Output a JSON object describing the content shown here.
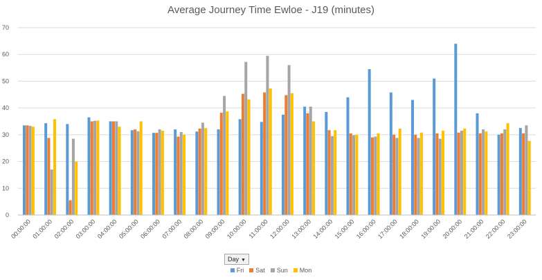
{
  "chart_data": {
    "type": "bar",
    "title": "Average Journey Time Ewloe - J19 (minutes)",
    "xlabel": "",
    "ylabel": "",
    "ylim": [
      0,
      70
    ],
    "yticks": [
      0,
      10,
      20,
      30,
      40,
      50,
      60,
      70
    ],
    "grid": true,
    "legend_position": "bottom",
    "categories": [
      "00:00:00",
      "01:00:00",
      "02:00:00",
      "03:00:00",
      "04:00:00",
      "05:00:00",
      "06:00:00",
      "07:00:00",
      "08:00:00",
      "09:00:00",
      "10:00:00",
      "11:00:00",
      "12:00:00",
      "13:00:00",
      "14:00:00",
      "15:00:00",
      "16:00:00",
      "17:00:00",
      "18:00:00",
      "19:00:00",
      "20:00:00",
      "21:00:00",
      "22:00:00",
      "23:00:00"
    ],
    "series": [
      {
        "name": "Fri",
        "color": "#5b9bd5",
        "values": [
          33.5,
          34.3,
          34.0,
          36.5,
          35.0,
          31.7,
          30.7,
          32.0,
          31.2,
          32.0,
          35.8,
          34.8,
          37.5,
          40.5,
          38.5,
          44.0,
          54.5,
          45.8,
          43.0,
          51.0,
          64.0,
          38.0,
          30.0,
          32.5
        ]
      },
      {
        "name": "Sat",
        "color": "#ed7d31",
        "values": [
          33.5,
          28.8,
          5.5,
          35.0,
          35.0,
          32.0,
          30.7,
          29.3,
          32.3,
          38.2,
          45.3,
          45.8,
          44.8,
          38.0,
          31.7,
          30.5,
          29.0,
          30.0,
          30.0,
          30.5,
          30.8,
          30.5,
          30.5,
          30.5
        ]
      },
      {
        "name": "Sun",
        "color": "#a5a5a5",
        "values": [
          33.3,
          17.0,
          28.5,
          35.2,
          35.0,
          31.3,
          32.0,
          31.0,
          34.5,
          44.5,
          57.2,
          59.5,
          56.0,
          40.5,
          29.5,
          29.8,
          29.3,
          28.8,
          28.8,
          28.5,
          31.5,
          32.0,
          32.0,
          33.5
        ]
      },
      {
        "name": "Mon",
        "color": "#ffc000",
        "values": [
          33.0,
          35.8,
          20.0,
          35.3,
          33.0,
          35.0,
          31.5,
          30.0,
          32.5,
          38.7,
          43.2,
          47.3,
          45.5,
          35.0,
          31.7,
          30.0,
          30.5,
          32.3,
          30.8,
          31.5,
          32.3,
          31.2,
          34.3,
          27.7
        ]
      }
    ],
    "filter_label": "Day",
    "filter_icon": "dropdown-arrow-icon"
  }
}
